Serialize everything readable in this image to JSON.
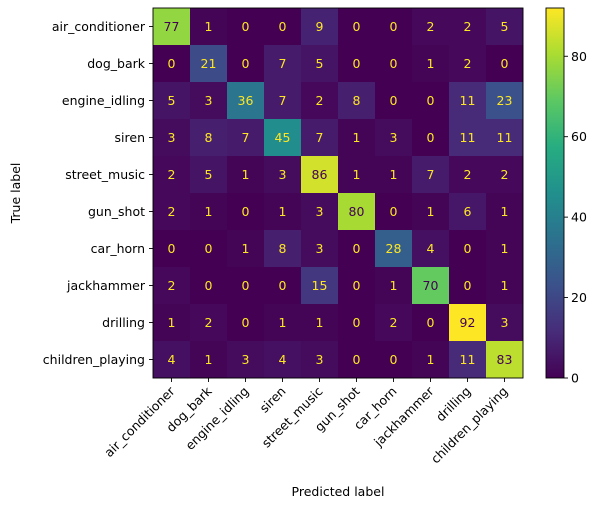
{
  "chart_data": {
    "type": "heatmap",
    "title": "",
    "xlabel": "Predicted label",
    "ylabel": "True label",
    "x_categories": [
      "air_conditioner",
      "dog_bark",
      "engine_idling",
      "siren",
      "street_music",
      "gun_shot",
      "car_horn",
      "jackhammer",
      "drilling",
      "children_playing"
    ],
    "y_categories": [
      "air_conditioner",
      "dog_bark",
      "engine_idling",
      "siren",
      "street_music",
      "gun_shot",
      "car_horn",
      "jackhammer",
      "drilling",
      "children_playing"
    ],
    "values": [
      [
        77,
        1,
        0,
        0,
        9,
        0,
        0,
        2,
        2,
        5
      ],
      [
        0,
        21,
        0,
        7,
        5,
        0,
        0,
        1,
        2,
        0
      ],
      [
        5,
        3,
        36,
        7,
        2,
        8,
        0,
        0,
        11,
        23
      ],
      [
        3,
        8,
        7,
        45,
        7,
        1,
        3,
        0,
        11,
        11
      ],
      [
        2,
        5,
        1,
        3,
        86,
        1,
        1,
        7,
        2,
        2
      ],
      [
        2,
        1,
        0,
        1,
        3,
        80,
        0,
        1,
        6,
        1
      ],
      [
        0,
        0,
        1,
        8,
        3,
        0,
        28,
        4,
        0,
        1
      ],
      [
        2,
        0,
        0,
        0,
        15,
        0,
        1,
        70,
        0,
        1
      ],
      [
        1,
        2,
        0,
        1,
        1,
        0,
        2,
        0,
        92,
        3
      ],
      [
        4,
        1,
        3,
        4,
        3,
        0,
        0,
        1,
        11,
        83
      ]
    ],
    "colormap": "viridis",
    "colorbar": {
      "range": [
        0,
        92
      ],
      "ticks": [
        0,
        20,
        40,
        60,
        80
      ]
    },
    "grid": false
  }
}
